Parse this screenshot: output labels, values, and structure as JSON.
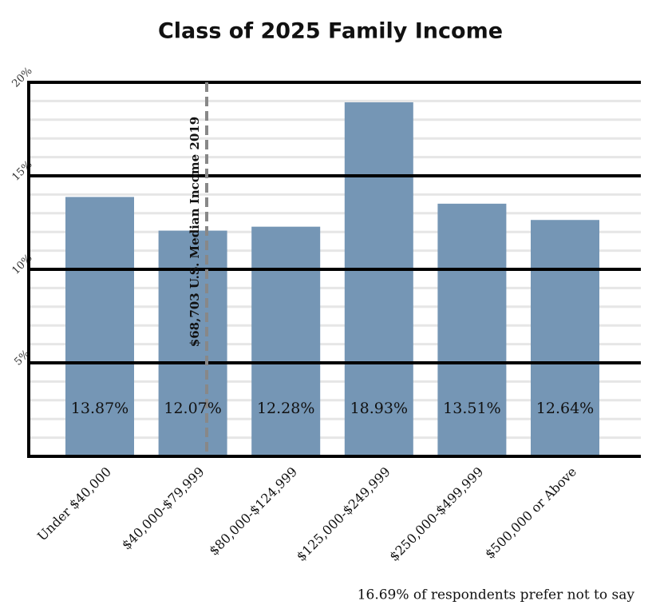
{
  "chart_data": {
    "type": "bar",
    "title": "Class of 2025 Family Income",
    "categories": [
      "Under $40,000",
      "$40,000-$79,999",
      "$80,000-$124,999",
      "$125,000-$249,999",
      "$250,000-$499,999",
      "$500,000 or Above"
    ],
    "values": [
      13.87,
      12.07,
      12.28,
      18.93,
      13.51,
      12.64
    ],
    "value_labels": [
      "13.87%",
      "12.07%",
      "12.28%",
      "18.93%",
      "13.51%",
      "12.64%"
    ],
    "color": "#7596b5",
    "ylim": [
      0,
      20
    ],
    "yticks": [
      {
        "value": 5,
        "label": "5%"
      },
      {
        "value": 10,
        "label": "10%"
      },
      {
        "value": 15,
        "label": "15%"
      },
      {
        "value": 20,
        "label": "20%"
      }
    ],
    "minor_yticks": [
      1,
      2,
      3,
      4,
      6,
      7,
      8,
      9,
      11,
      12,
      13,
      14,
      16,
      17,
      18,
      19
    ],
    "grid": true,
    "annotation": "$68,703 U.S. Median Income 2019",
    "note": "16.69% of respondents prefer not to say"
  }
}
